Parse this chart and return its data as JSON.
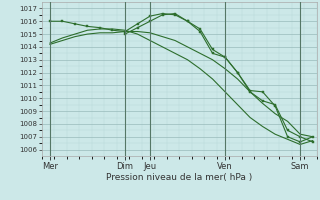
{
  "bg_color": "#cce8e8",
  "grid_color_minor": "#b8d8d8",
  "grid_color_major": "#99bbbb",
  "line_color": "#2d6e2d",
  "title": "Pression niveau de la mer( hPa )",
  "ylim": [
    1005.5,
    1017.5
  ],
  "yticks": [
    1006,
    1007,
    1008,
    1009,
    1010,
    1011,
    1012,
    1013,
    1014,
    1015,
    1016,
    1017
  ],
  "day_labels": [
    "Mer",
    "Dim",
    "Jeu",
    "Ven",
    "Sam"
  ],
  "day_positions": [
    0,
    36,
    48,
    84,
    120
  ],
  "xlim": [
    -4,
    128
  ],
  "series1_x": [
    0,
    6,
    12,
    18,
    24,
    30,
    36,
    42,
    48,
    54,
    60,
    66,
    72,
    78,
    84,
    90,
    96,
    102,
    108,
    114,
    120,
    126
  ],
  "series1_y": [
    1016.0,
    1016.0,
    1015.8,
    1015.6,
    1015.5,
    1015.3,
    1015.2,
    1015.8,
    1016.4,
    1016.6,
    1016.5,
    1016.0,
    1015.4,
    1013.8,
    1013.2,
    1012.0,
    1010.6,
    1010.5,
    1009.4,
    1007.0,
    1006.6,
    1007.0
  ],
  "series2_x": [
    0,
    6,
    12,
    18,
    24,
    30,
    36,
    42,
    48,
    54,
    60,
    66,
    72,
    78,
    84,
    90,
    96,
    102,
    108,
    114,
    120,
    126
  ],
  "series2_y": [
    1014.2,
    1014.5,
    1014.8,
    1015.0,
    1015.1,
    1015.1,
    1015.2,
    1015.2,
    1015.1,
    1014.8,
    1014.5,
    1014.0,
    1013.5,
    1013.0,
    1012.3,
    1011.5,
    1010.5,
    1009.6,
    1008.8,
    1008.2,
    1007.2,
    1007.0
  ],
  "series3_x": [
    0,
    6,
    12,
    18,
    24,
    30,
    36,
    42,
    48,
    54,
    60,
    66,
    72,
    78,
    84,
    90,
    96,
    102,
    108,
    114,
    120,
    126
  ],
  "series3_y": [
    1014.3,
    1014.7,
    1015.0,
    1015.3,
    1015.4,
    1015.4,
    1015.3,
    1015.0,
    1014.5,
    1014.0,
    1013.5,
    1013.0,
    1012.3,
    1011.5,
    1010.5,
    1009.5,
    1008.5,
    1007.8,
    1007.2,
    1006.8,
    1006.4,
    1006.7
  ],
  "series4_x": [
    36,
    42,
    48,
    54,
    60,
    66,
    72,
    78,
    84,
    90,
    96,
    102,
    108,
    114,
    120,
    126
  ],
  "series4_y": [
    1015.0,
    1015.5,
    1016.0,
    1016.5,
    1016.6,
    1016.0,
    1015.2,
    1013.5,
    1013.2,
    1012.0,
    1010.5,
    1009.8,
    1009.5,
    1007.5,
    1007.0,
    1006.6
  ]
}
